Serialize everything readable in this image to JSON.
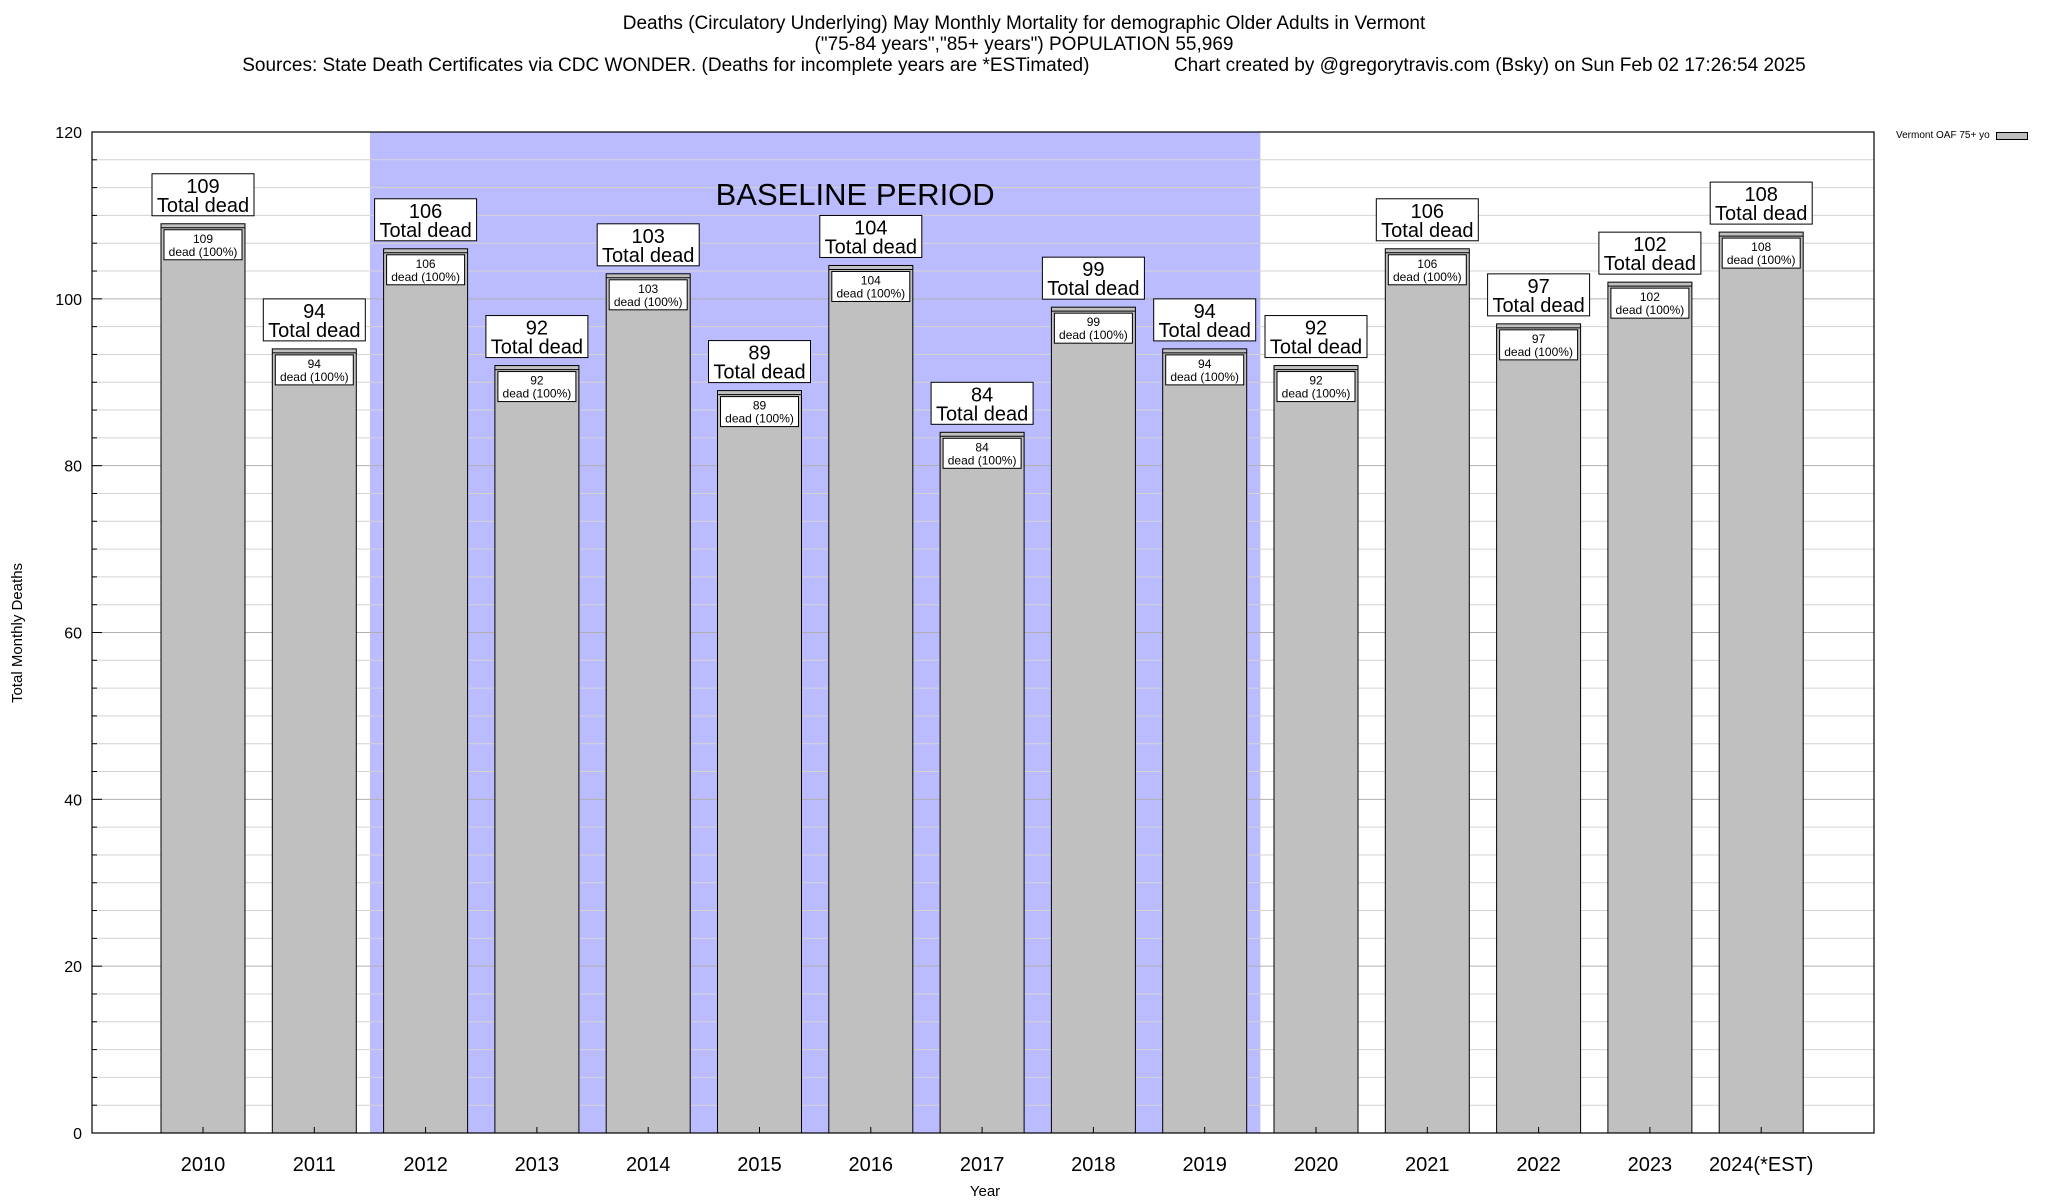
{
  "title_lines": [
    "Deaths (Circulatory Underlying) May Monthly Mortality for demographic Older Adults in Vermont",
    "(\"75-84 years\",\"85+ years\") POPULATION 55,969",
    "Sources: State Death Certificates via CDC WONDER. (Deaths for incomplete years are *ESTimated)                Chart created by @gregorytravis.com (Bsky) on Sun Feb 02 17:26:54 2025"
  ],
  "chart_data": {
    "type": "bar",
    "categories": [
      "2010",
      "2011",
      "2012",
      "2013",
      "2014",
      "2015",
      "2016",
      "2017",
      "2018",
      "2019",
      "2020",
      "2021",
      "2022",
      "2023",
      "2024(*EST)"
    ],
    "series": [
      {
        "name": "Vermont OAF 75+ yo",
        "values": [
          109,
          94,
          106,
          92,
          103,
          89,
          104,
          84,
          99,
          94,
          92,
          106,
          97,
          102,
          108
        ]
      }
    ],
    "xlabel": "Year",
    "ylabel": "Total Monthly Deaths",
    "ylim": [
      0,
      120
    ],
    "yticks": [
      0,
      20,
      40,
      60,
      80,
      100,
      120
    ],
    "grid": true,
    "legend": "top-right",
    "top_label_suffix": "Total dead",
    "inner_label_suffix": "dead (100%)",
    "shaded_region": {
      "label": "BASELINE PERIOD",
      "from_category": "2012",
      "to_category": "2019",
      "color": "#bbbbff"
    },
    "bar_color": "#c0c0c0"
  }
}
